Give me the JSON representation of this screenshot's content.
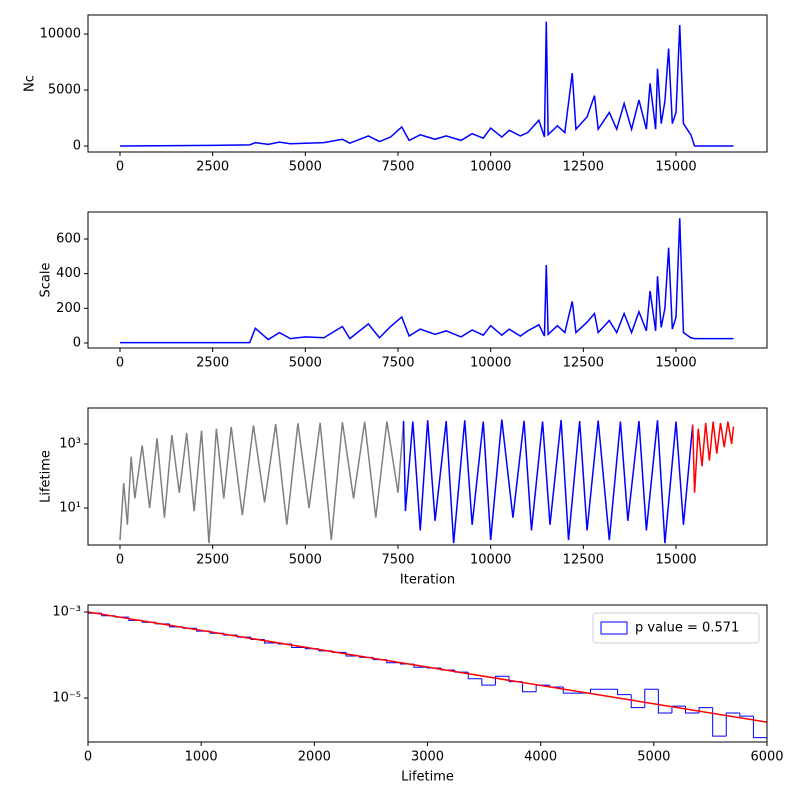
{
  "chart_data": [
    {
      "type": "line",
      "ylabel": "Nc",
      "x": [
        0,
        500,
        1000,
        1500,
        2000,
        2500,
        3000,
        3500,
        3650,
        4000,
        4300,
        4600,
        5000,
        5500,
        6000,
        6200,
        6700,
        7000,
        7300,
        7600,
        7800,
        8100,
        8500,
        8800,
        9200,
        9500,
        9800,
        10000,
        10300,
        10500,
        10800,
        11000,
        11300,
        11450,
        11500,
        11550,
        11800,
        12000,
        12200,
        12300,
        12600,
        12800,
        12900,
        13200,
        13400,
        13600,
        13800,
        14000,
        14200,
        14300,
        14450,
        14500,
        14600,
        14700,
        14800,
        14900,
        15000,
        15100,
        15200,
        15400,
        15500,
        16550
      ],
      "series": [
        {
          "color": "#0000ff",
          "values": [
            0,
            10,
            20,
            30,
            50,
            60,
            80,
            100,
            300,
            150,
            350,
            200,
            250,
            300,
            600,
            250,
            900,
            400,
            800,
            1700,
            500,
            1000,
            600,
            900,
            500,
            1100,
            700,
            1600,
            800,
            1400,
            900,
            1200,
            2300,
            800,
            11100,
            1000,
            1800,
            1200,
            6500,
            1500,
            2600,
            4500,
            1500,
            3000,
            1500,
            3800,
            1500,
            4100,
            1500,
            5600,
            1500,
            6900,
            2000,
            4000,
            8700,
            2000,
            3000,
            10800,
            2000,
            1000,
            0,
            0
          ]
        }
      ],
      "xlim": [
        -863,
        17454
      ],
      "xticks": [
        0,
        2500,
        5000,
        7500,
        10000,
        12500,
        15000
      ],
      "ylim": [
        -536,
        11696
      ],
      "yticks": [
        0,
        5000,
        10000
      ]
    },
    {
      "type": "line",
      "ylabel": "Scale",
      "x": [
        0,
        500,
        1000,
        1500,
        2000,
        2500,
        3000,
        3500,
        3650,
        4000,
        4300,
        4600,
        5000,
        5500,
        6000,
        6200,
        6700,
        7000,
        7300,
        7600,
        7800,
        8100,
        8500,
        8800,
        9200,
        9500,
        9800,
        10000,
        10300,
        10500,
        10800,
        11000,
        11300,
        11450,
        11500,
        11550,
        11800,
        12000,
        12200,
        12300,
        12600,
        12800,
        12900,
        13200,
        13400,
        13600,
        13800,
        14000,
        14200,
        14300,
        14450,
        14500,
        14600,
        14700,
        14800,
        14900,
        15000,
        15100,
        15200,
        15400,
        15500,
        16550
      ],
      "series": [
        {
          "color": "#0000ff",
          "values": [
            2,
            2,
            2,
            2,
            2,
            2,
            2,
            2,
            85,
            20,
            60,
            25,
            35,
            30,
            95,
            25,
            110,
            30,
            95,
            150,
            40,
            80,
            50,
            70,
            35,
            75,
            45,
            100,
            45,
            80,
            40,
            70,
            105,
            40,
            450,
            50,
            100,
            60,
            240,
            60,
            120,
            170,
            60,
            130,
            60,
            170,
            60,
            180,
            70,
            300,
            70,
            385,
            90,
            200,
            550,
            80,
            150,
            720,
            60,
            30,
            25,
            25
          ]
        }
      ],
      "xlim": [
        -863,
        17454
      ],
      "xticks": [
        0,
        2500,
        5000,
        7500,
        10000,
        12500,
        15000
      ],
      "ylim": [
        -29,
        756
      ],
      "yticks": [
        0,
        200,
        400,
        600
      ]
    },
    {
      "type": "line",
      "ylabel": "Lifetime",
      "xlabel": "Iteration",
      "ylog": true,
      "series": [
        {
          "color": "#808080",
          "x": [
            0,
            100,
            200,
            300,
            400,
            600,
            800,
            1000,
            1200,
            1400,
            1600,
            1800,
            2000,
            2200,
            2400,
            2600,
            2800,
            3000,
            3300,
            3600,
            3900,
            4200,
            4500,
            4800,
            5100,
            5400,
            5700,
            6000,
            6300,
            6600,
            6900,
            7200,
            7500,
            7650
          ],
          "values": [
            1,
            60,
            3,
            400,
            20,
            900,
            10,
            1500,
            5,
            1900,
            30,
            2200,
            8,
            2600,
            0.8,
            3000,
            20,
            3400,
            6,
            3800,
            15,
            4200,
            3,
            4400,
            10,
            4600,
            1,
            4800,
            20,
            4900,
            5,
            5000,
            30,
            5200
          ]
        },
        {
          "color": "#0000ff",
          "x": [
            7650,
            7700,
            7900,
            8100,
            8300,
            8500,
            8800,
            9000,
            9300,
            9500,
            9800,
            10000,
            10300,
            10600,
            10900,
            11100,
            11400,
            11600,
            11900,
            12100,
            12400,
            12600,
            12900,
            13200,
            13500,
            13700,
            14000,
            14200,
            14500,
            14700,
            15000,
            15200,
            15450
          ],
          "values": [
            5200,
            8,
            5000,
            2,
            5500,
            4,
            5200,
            0.8,
            5500,
            3,
            5000,
            1,
            5800,
            5,
            5300,
            2,
            5000,
            3,
            5600,
            1,
            5200,
            2,
            5400,
            1,
            5000,
            4,
            5200,
            2,
            5500,
            0.8,
            5000,
            3,
            4000
          ]
        },
        {
          "color": "#ff0000",
          "x": [
            15450,
            15500,
            15600,
            15700,
            15800,
            15900,
            16000,
            16100,
            16200,
            16300,
            16400,
            16500,
            16550
          ],
          "values": [
            4000,
            30,
            3000,
            200,
            4500,
            300,
            5000,
            500,
            4500,
            800,
            5000,
            1000,
            3500
          ]
        }
      ],
      "xlim": [
        -863,
        17454
      ],
      "xticks": [
        0,
        2500,
        5000,
        7500,
        10000,
        12500,
        15000
      ],
      "ylim": [
        0.7,
        13300
      ],
      "yticks": [
        {
          "value": 10,
          "label": "10¹"
        },
        {
          "value": 1000,
          "label": "10³"
        }
      ]
    },
    {
      "type": "histogram",
      "xlabel": "Lifetime",
      "ylog": true,
      "bins": [
        0,
        120,
        240,
        360,
        480,
        600,
        720,
        840,
        960,
        1080,
        1200,
        1320,
        1440,
        1560,
        1680,
        1800,
        1920,
        2040,
        2160,
        2280,
        2400,
        2520,
        2640,
        2760,
        2880,
        3000,
        3120,
        3240,
        3360,
        3480,
        3600,
        3720,
        3840,
        3960,
        4080,
        4200,
        4320,
        4440,
        4560,
        4680,
        4800,
        4920,
        5040,
        5160,
        5280,
        5400,
        5520,
        5640,
        5760,
        5880,
        6000
      ],
      "series": [
        {
          "name": "p value = 0.571",
          "color": "#0000ff",
          "values": [
            0.00094,
            0.00082,
            0.00076,
            0.00064,
            0.00058,
            0.00053,
            0.00045,
            0.00042,
            0.00036,
            0.00032,
            0.00029,
            0.00026,
            0.00023,
            0.00019,
            0.00018,
            0.00015,
            0.00014,
            0.000125,
            0.000115,
            9.5e-05,
            8.8e-05,
            7.8e-05,
            6.6e-05,
            6.2e-05,
            5.2e-05,
            5e-05,
            4.5e-05,
            4e-05,
            2.8e-05,
            2e-05,
            3.2e-05,
            2.4e-05,
            1.4e-05,
            2e-05,
            1.8e-05,
            1.3e-05,
            1.3e-05,
            1.6e-05,
            1.6e-05,
            1.2e-05,
            6e-06,
            1.6e-05,
            4.5e-06,
            6.5e-06,
            4.5e-06,
            6e-06,
            1.3e-06,
            4.5e-06,
            3.8e-06,
            1.2e-06
          ]
        }
      ],
      "fit_line": {
        "color": "#ff0000",
        "x": [
          0,
          6000
        ],
        "values": [
          0.001,
          2.75e-06
        ]
      },
      "legend": "upper right",
      "xlim": [
        0,
        6000
      ],
      "xticks": [
        0,
        1000,
        2000,
        3000,
        4000,
        5000,
        6000
      ],
      "ylim": [
        9.5e-07,
        0.001456
      ],
      "yticks": [
        {
          "value": 0.001,
          "label": "10⁻³"
        },
        {
          "value": 1e-05,
          "label": "10⁻⁵"
        }
      ]
    }
  ]
}
